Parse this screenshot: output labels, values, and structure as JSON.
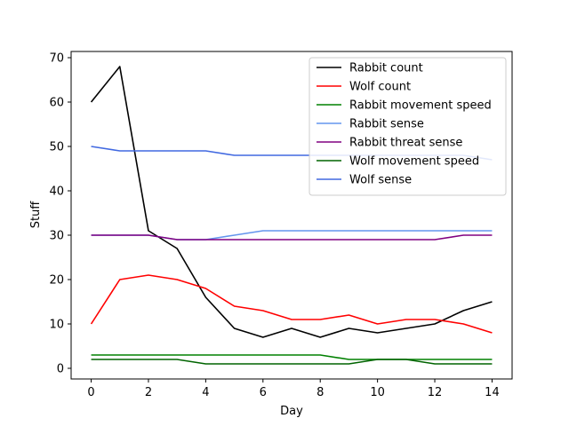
{
  "chart_data": {
    "type": "line",
    "title": "",
    "xlabel": "Day",
    "ylabel": "Stuff",
    "xlim": [
      -0.7,
      14.7
    ],
    "ylim": [
      -2.4,
      71.4
    ],
    "xticks": [
      0,
      2,
      4,
      6,
      8,
      10,
      12,
      14
    ],
    "yticks": [
      0,
      10,
      20,
      30,
      40,
      50,
      60,
      70
    ],
    "grid": false,
    "legend_position": "top-right",
    "x": [
      0,
      1,
      2,
      3,
      4,
      5,
      6,
      7,
      8,
      9,
      10,
      11,
      12,
      13,
      14
    ],
    "series": [
      {
        "name": "Rabbit count",
        "color": "#000000",
        "values": [
          60,
          68,
          31,
          27,
          16,
          9,
          7,
          9,
          7,
          9,
          8,
          9,
          10,
          13,
          15
        ]
      },
      {
        "name": "Wolf count",
        "color": "#ff0000",
        "values": [
          10,
          20,
          21,
          20,
          18,
          14,
          13,
          11,
          11,
          12,
          10,
          11,
          11,
          10,
          8
        ]
      },
      {
        "name": "Rabbit movement speed",
        "color": "#008000",
        "values": [
          3,
          3,
          3,
          3,
          3,
          3,
          3,
          3,
          3,
          2,
          2,
          2,
          2,
          2,
          2
        ]
      },
      {
        "name": "Rabbit sense",
        "color": "#6495ed",
        "values": [
          30,
          30,
          30,
          29,
          29,
          30,
          31,
          31,
          31,
          31,
          31,
          31,
          31,
          31,
          31
        ]
      },
      {
        "name": "Rabbit threat sense",
        "color": "#800080",
        "values": [
          30,
          30,
          30,
          29,
          29,
          29,
          29,
          29,
          29,
          29,
          29,
          29,
          29,
          30,
          30
        ]
      },
      {
        "name": "Wolf movement speed",
        "color": "#006400",
        "values": [
          2,
          2,
          2,
          2,
          1,
          1,
          1,
          1,
          1,
          1,
          2,
          2,
          1,
          1,
          1
        ]
      },
      {
        "name": "Wolf sense",
        "color": "#4169e1",
        "values": [
          50,
          49,
          49,
          49,
          49,
          48,
          48,
          48,
          48,
          48,
          48,
          48,
          48,
          48,
          47
        ]
      }
    ]
  }
}
